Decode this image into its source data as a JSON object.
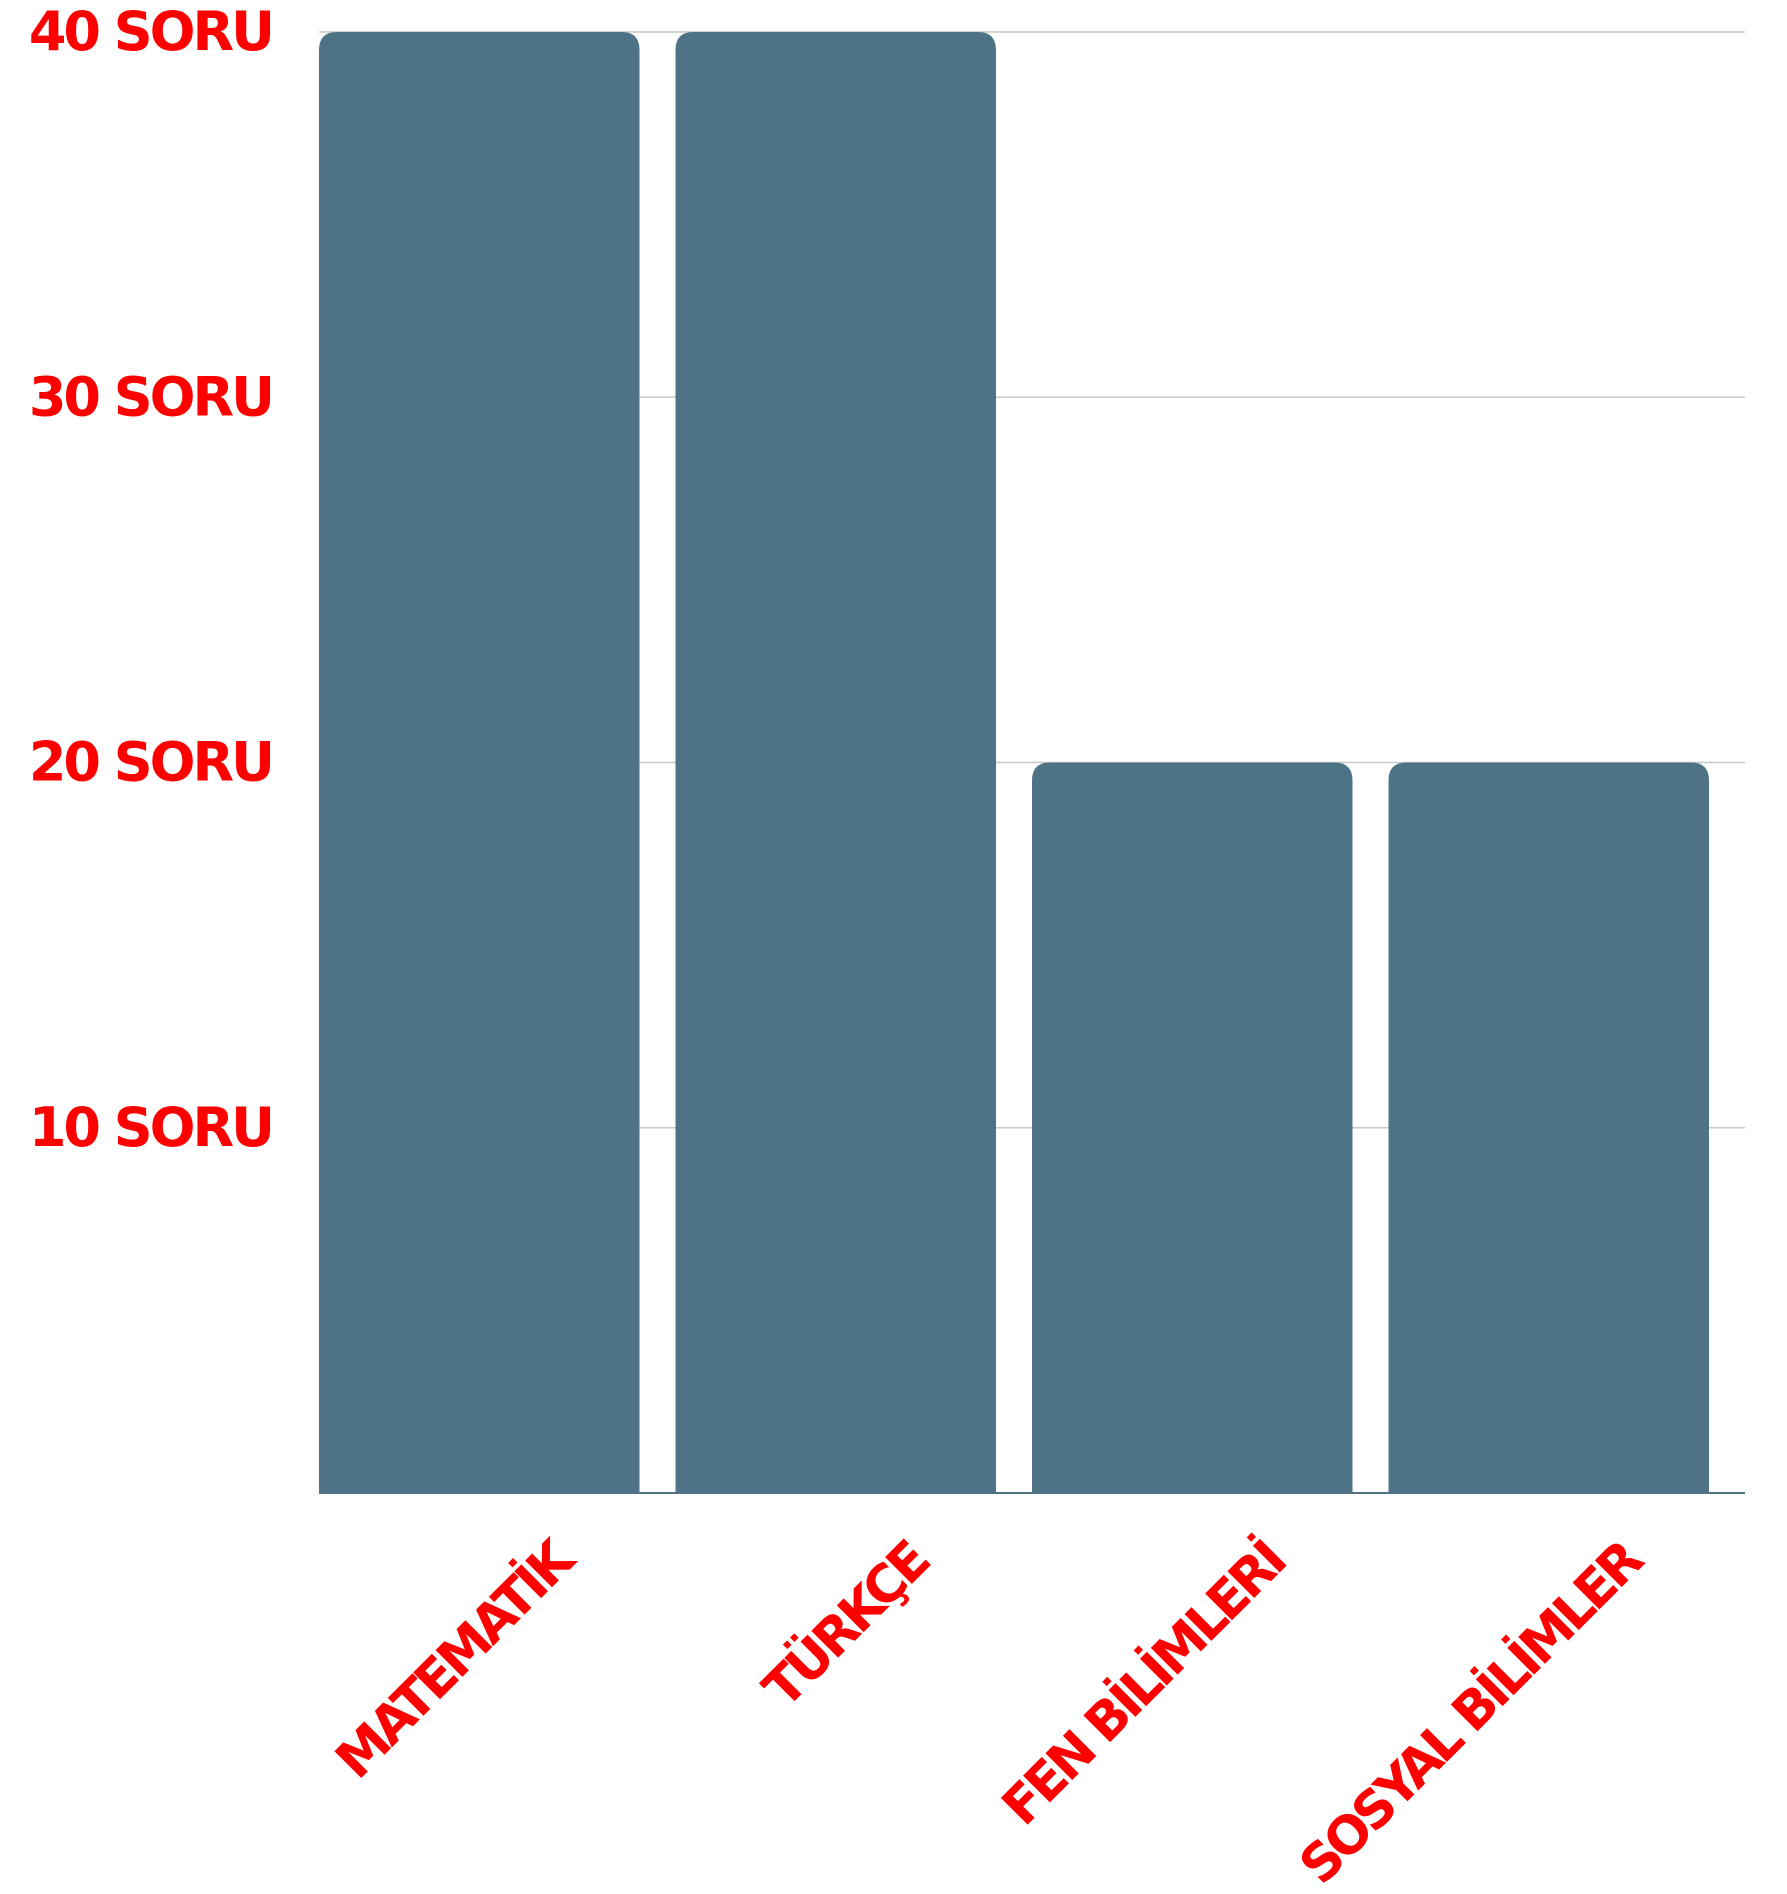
{
  "chart_data": {
    "type": "bar",
    "categories": [
      "MATEMATİK",
      "TÜRKÇE",
      "FEN BİLİMLERİ",
      "SOSYAL BİLİMLER"
    ],
    "values": [
      40,
      40,
      20,
      20
    ],
    "title": "",
    "xlabel": "",
    "ylabel": "",
    "ylim": [
      0,
      40
    ],
    "yticks": [
      {
        "value": 10,
        "label": "10 SORU"
      },
      {
        "value": 20,
        "label": "20 SORU"
      },
      {
        "value": 30,
        "label": "30 SORU"
      },
      {
        "value": 40,
        "label": "40 SORU"
      }
    ],
    "grid": true,
    "legend": "none",
    "colors": {
      "bar": "#4f7386",
      "label": "#ff0000",
      "grid": "#c8c8c8"
    }
  }
}
